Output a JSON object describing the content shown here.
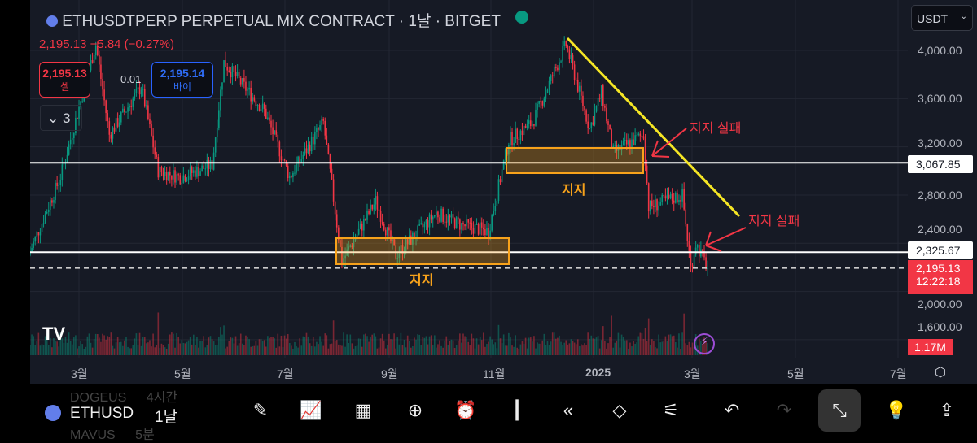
{
  "header": {
    "title": "ETHUSDTPERP PERPETUAL MIX CONTRACT · 1날 · BITGET",
    "last": "2,195.13",
    "change": "−5.84 (−0.27%)",
    "status_color": "#089981"
  },
  "trade": {
    "sell_price": "2,195.13",
    "sell_label": "셀",
    "spread": "0.01",
    "buy_price": "2,195.14",
    "buy_label": "바이",
    "collapse_label": "3"
  },
  "currency": "USDT",
  "price_axis": [
    "4,000.00",
    "3,600.00",
    "3,200.00",
    "2,800.00",
    "2,400.00",
    "2,000.00",
    "1,600.00"
  ],
  "lines": {
    "upper": "3,067.85",
    "lower": "2,325.67",
    "current": "2,195.13",
    "countdown": "12:22:18",
    "volume": "1.17M"
  },
  "annotations": {
    "support1": "지지",
    "support2": "지지",
    "fail1": "지지 실패",
    "fail2": "지지 실패"
  },
  "time_axis": [
    "3월",
    "5월",
    "7월",
    "9월",
    "11월",
    "2025",
    "3월",
    "5월",
    "7월"
  ],
  "bottom": {
    "symbol": "ETHUSD",
    "interval": "1날",
    "prev_symbol": "DOGEUS",
    "prev_interval": "4시간",
    "next_symbol": "MAVUS",
    "next_interval": "5분"
  },
  "toolbar": [
    "pencil-icon",
    "indicators-icon",
    "layout-icon",
    "add-icon",
    "alert-icon",
    "candles-icon",
    "replay-icon",
    "layers-icon",
    "settings-icon",
    "undo-icon",
    "redo-icon",
    "exit-fullscreen-icon",
    "ideas-icon",
    "share-icon"
  ],
  "colors": {
    "up": "#089981",
    "down": "#f23645",
    "zone": "#f7a21b",
    "trend": "#f5e625"
  },
  "chart_data": {
    "type": "candlestick",
    "symbol": "ETHUSDTPERP",
    "interval": "1D",
    "ylim": [
      1500,
      4200
    ],
    "path": [
      [
        "2024-02-01",
        2300
      ],
      [
        "2024-02-20",
        2950
      ],
      [
        "2024-03-12",
        4050
      ],
      [
        "2024-03-20",
        3300
      ],
      [
        "2024-04-08",
        3700
      ],
      [
        "2024-04-18",
        3000
      ],
      [
        "2024-05-01",
        2950
      ],
      [
        "2024-05-20",
        3050
      ],
      [
        "2024-05-27",
        3900
      ],
      [
        "2024-06-20",
        3500
      ],
      [
        "2024-07-05",
        2950
      ],
      [
        "2024-07-25",
        3400
      ],
      [
        "2024-08-05",
        2250
      ],
      [
        "2024-08-25",
        2750
      ],
      [
        "2024-09-06",
        2300
      ],
      [
        "2024-09-30",
        2650
      ],
      [
        "2024-10-15",
        2550
      ],
      [
        "2024-10-31",
        2500
      ],
      [
        "2024-11-12",
        3250
      ],
      [
        "2024-11-26",
        3400
      ],
      [
        "2024-12-16",
        4050
      ],
      [
        "2024-12-30",
        3350
      ],
      [
        "2025-01-06",
        3650
      ],
      [
        "2025-01-13",
        3150
      ],
      [
        "2025-01-31",
        3300
      ],
      [
        "2025-02-03",
        2700
      ],
      [
        "2025-02-23",
        2800
      ],
      [
        "2025-02-28",
        2200
      ],
      [
        "2025-03-03",
        2400
      ],
      [
        "2025-03-10",
        2195
      ]
    ]
  }
}
